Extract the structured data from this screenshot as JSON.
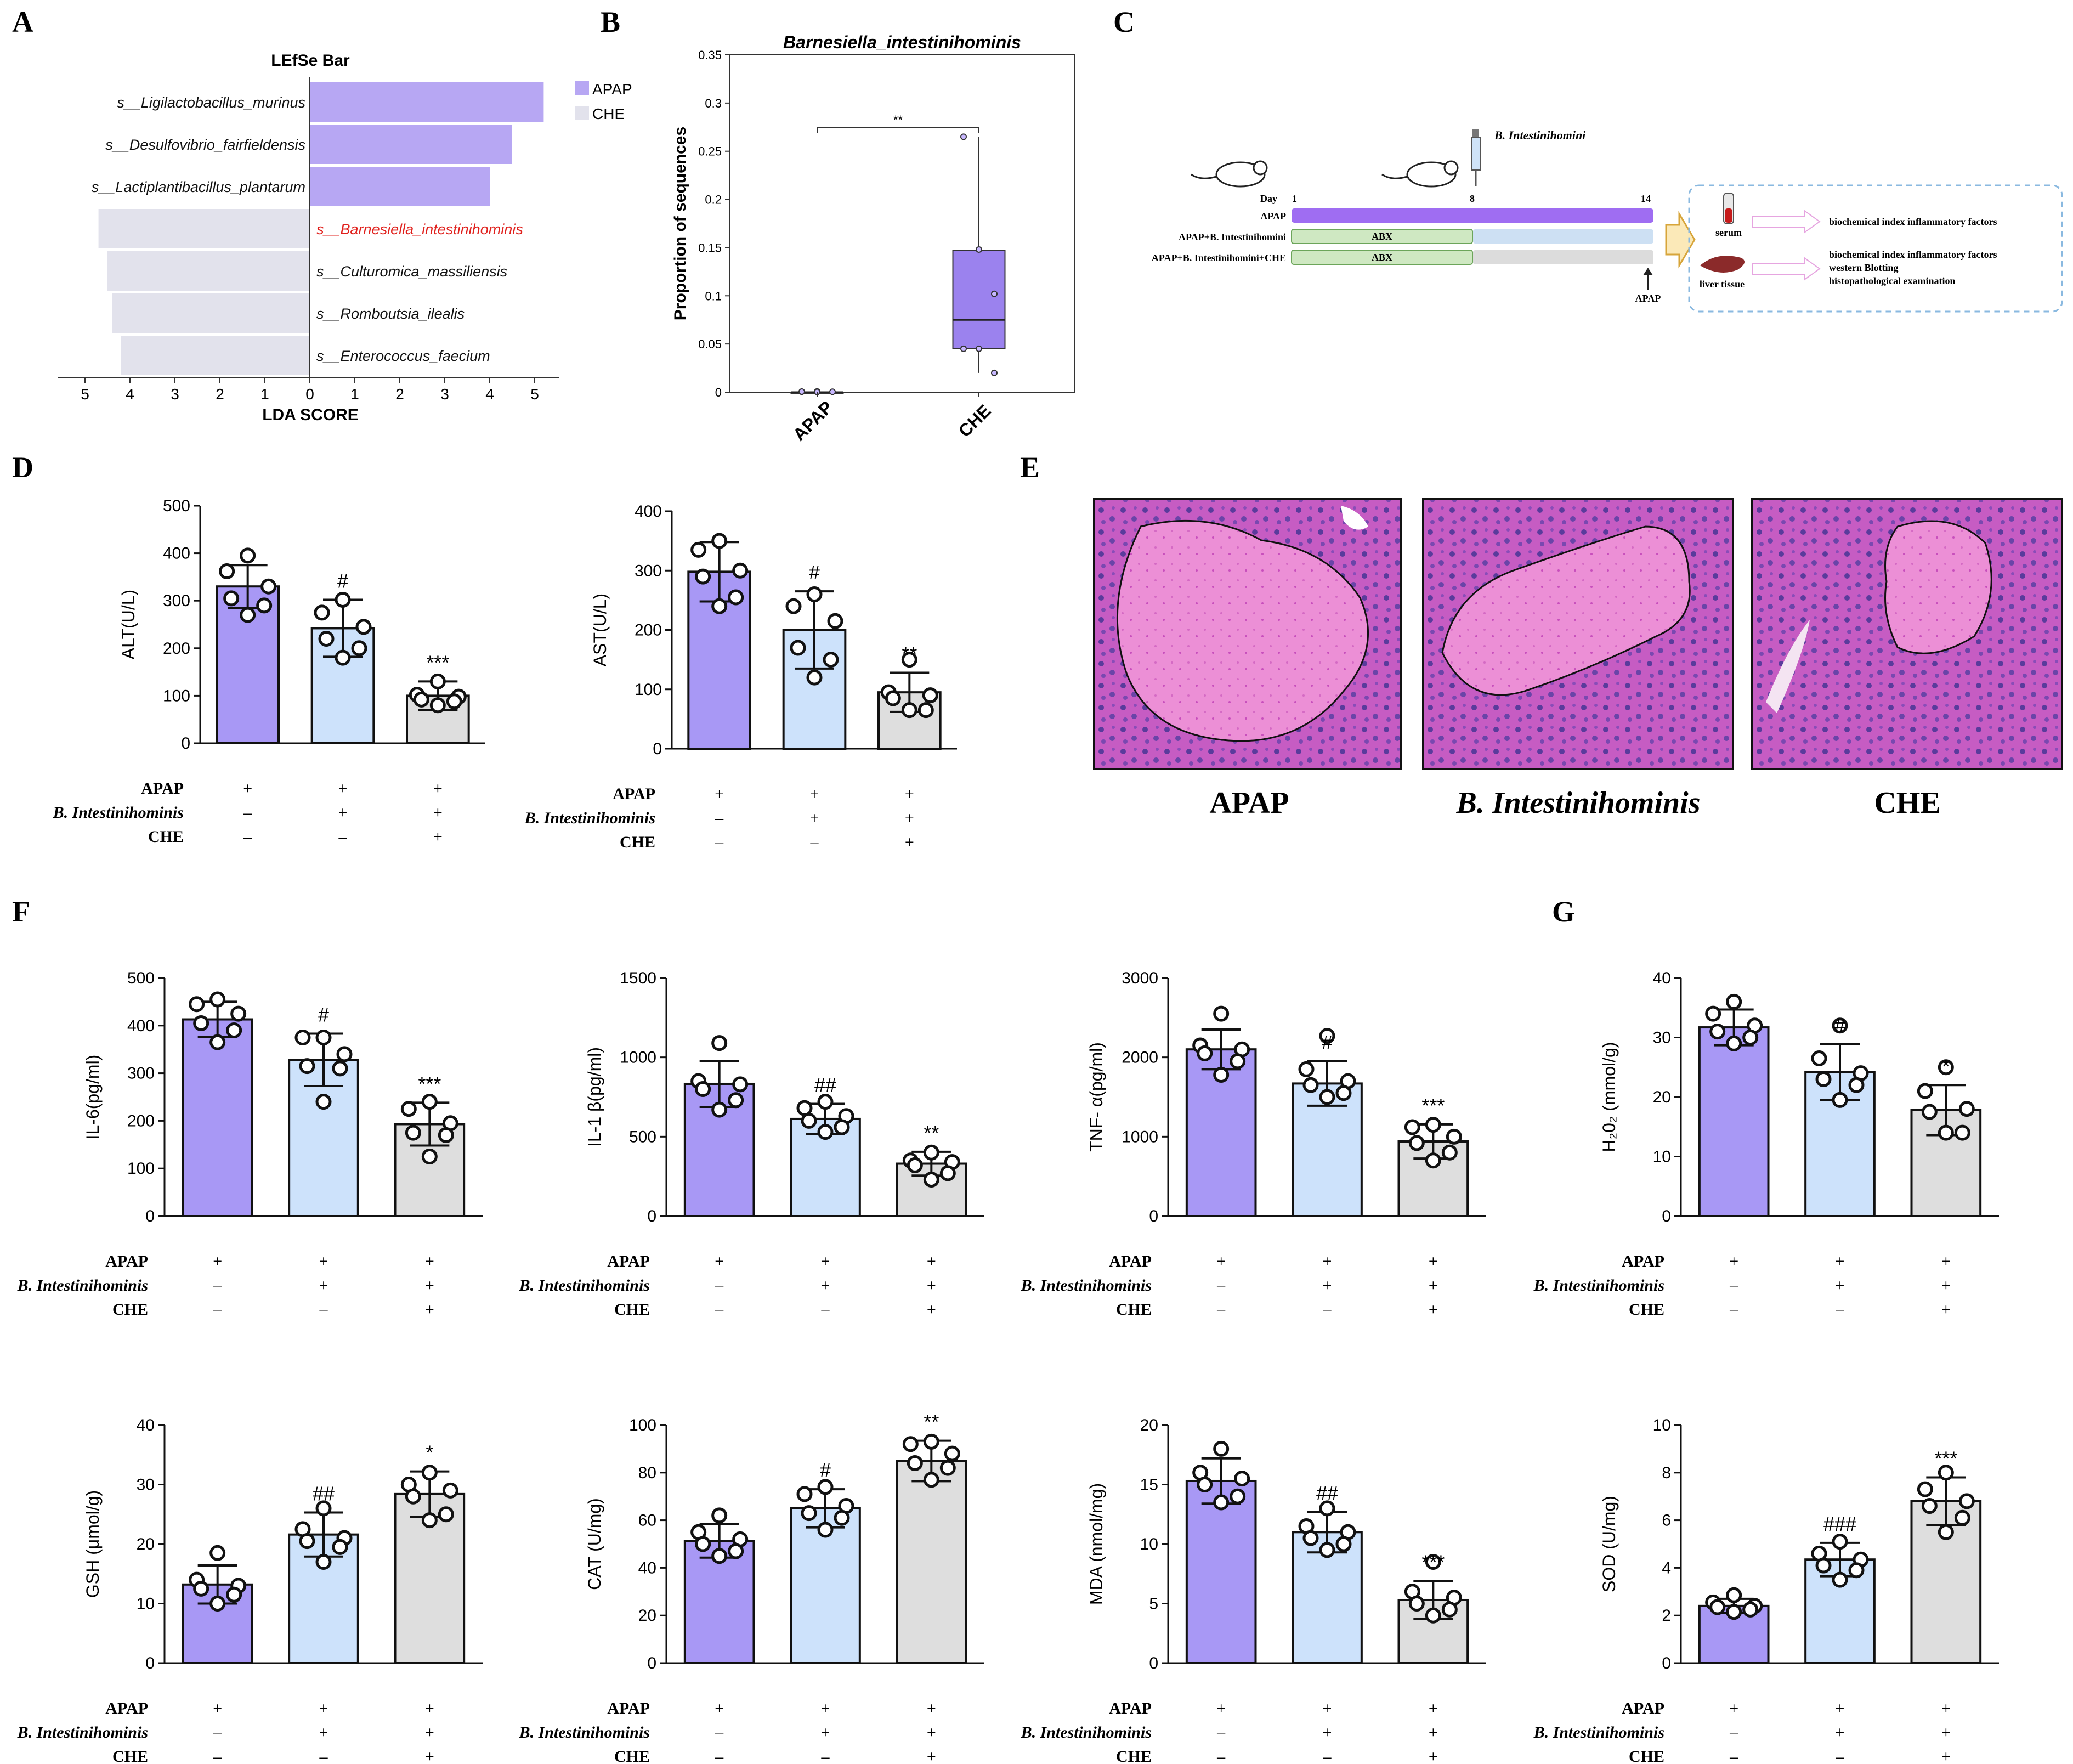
{
  "colors": {
    "apap": "#a898f5",
    "bint": "#cde2fb",
    "che": "#dedede",
    "lefse_apap": "#b7a7f3",
    "lefse_che": "#e2e2ec",
    "highlight": "#e0201c"
  },
  "panels": {
    "A": "A",
    "B": "B",
    "C": "C",
    "D": "D",
    "E": "E",
    "F": "F",
    "G": "G"
  },
  "conditions": {
    "labels": [
      "APAP",
      "B. Intestinihominis",
      "CHE"
    ],
    "signs": [
      [
        "+",
        "+",
        "+"
      ],
      [
        "–",
        "+",
        "+"
      ],
      [
        "–",
        "–",
        "+"
      ]
    ]
  },
  "lefse": {
    "title": "LEfSe Bar",
    "xlabel": "LDA SCORE",
    "legend": [
      "APAP",
      "CHE"
    ],
    "ticks": [
      "5",
      "4",
      "3",
      "2",
      "1",
      "0",
      "1",
      "2",
      "3",
      "4",
      "5"
    ]
  },
  "timeline": {
    "day_label": "Day",
    "days": [
      "1",
      "8",
      "14"
    ],
    "inject_label": "B. Intestinihomini",
    "rows": [
      "APAP",
      "APAP+B. Intestinihomini",
      "APAP+B. Intestinihomini+CHE"
    ],
    "abx": "ABX",
    "apap_arrow": "APAP",
    "samples": [
      "serum",
      "liver tissue"
    ],
    "serum_text": [
      "biochemical index inflammatory factors"
    ],
    "liver_text": [
      "biochemical index inflammatory factors",
      "western Blotting",
      "histopathological examination"
    ]
  },
  "histology": {
    "captions": [
      "APAP",
      "B. Intestinihominis",
      "CHE"
    ]
  },
  "chart_data": [
    {
      "id": "lefse",
      "type": "bar",
      "title": "LEfSe Bar",
      "xlabel": "LDA SCORE",
      "categories": [
        "s__Ligilactobacillus_murinus",
        "s__Desulfovibrio_fairfieldensis",
        "s__Lactiplantibacillus_plantarum",
        "s__Barnesiella_intestinihominis",
        "s__Culturomica_massiliensis",
        "s__Romboutsia_ilealis",
        "s__Enterococcus_faecium"
      ],
      "values": [
        5.2,
        4.5,
        4.0,
        4.7,
        4.5,
        4.4,
        4.2
      ],
      "groups": [
        "APAP",
        "APAP",
        "APAP",
        "CHE",
        "CHE",
        "CHE",
        "CHE"
      ],
      "xlim": [
        -5,
        5
      ]
    },
    {
      "id": "boxplot",
      "type": "box",
      "title": "Barnesiella_intestinihominis",
      "ylabel": "Proportion of sequences",
      "categories": [
        "APAP",
        "CHE"
      ],
      "yticks": [
        "0",
        "0.05",
        "0.1",
        "0.15",
        "0.2",
        "0.25",
        "0.3",
        "0.35"
      ],
      "ylim": [
        0,
        0.35
      ],
      "boxes": [
        {
          "min": 0,
          "q1": 0,
          "median": 0,
          "q3": 0,
          "max": 0.001
        },
        {
          "min": 0.02,
          "q1": 0.045,
          "median": 0.075,
          "q3": 0.147,
          "max": 0.265
        }
      ],
      "points": [
        [
          0.0005,
          0.0007,
          0.0004,
          0.0006,
          0.0003
        ],
        [
          0.265,
          0.148,
          0.102,
          0.045,
          0.045,
          0.02
        ]
      ],
      "significance": "**"
    },
    {
      "id": "alt",
      "type": "bar",
      "ylabel": "ALT(U/L)",
      "ylim": [
        0,
        500
      ],
      "yticks": [
        "0",
        "100",
        "200",
        "300",
        "400",
        "500"
      ],
      "categories": [
        "APAP",
        "B. Intestinihominis",
        "CHE"
      ],
      "values": [
        330,
        242,
        100
      ],
      "sd": [
        45,
        60,
        30
      ],
      "points": [
        [
          395,
          362,
          330,
          305,
          290,
          270
        ],
        [
          302,
          275,
          245,
          220,
          200,
          180
        ],
        [
          130,
          102,
          98,
          92,
          88,
          80
        ]
      ],
      "sig": [
        "",
        "#",
        "***"
      ]
    },
    {
      "id": "ast",
      "type": "bar",
      "ylabel": "AST(U/L)",
      "ylim": [
        0,
        400
      ],
      "yticks": [
        "0",
        "100",
        "200",
        "300",
        "400"
      ],
      "categories": [
        "APAP",
        "B. Intestinihominis",
        "CHE"
      ],
      "values": [
        298,
        200,
        95
      ],
      "sd": [
        50,
        65,
        33
      ],
      "points": [
        [
          350,
          335,
          300,
          290,
          255,
          240
        ],
        [
          260,
          240,
          215,
          170,
          150,
          120
        ],
        [
          150,
          95,
          90,
          85,
          65,
          65
        ]
      ],
      "sig": [
        "",
        "#",
        "**"
      ]
    },
    {
      "id": "il6",
      "type": "bar",
      "ylabel": "IL-6(pg/ml)",
      "ylim": [
        0,
        500
      ],
      "yticks": [
        "0",
        "100",
        "200",
        "300",
        "400",
        "500"
      ],
      "categories": [
        "APAP",
        "B. Intestinihominis",
        "CHE"
      ],
      "values": [
        413,
        328,
        193
      ],
      "sd": [
        37,
        55,
        45
      ],
      "points": [
        [
          455,
          445,
          425,
          405,
          390,
          365
        ],
        [
          375,
          375,
          340,
          315,
          310,
          240
        ],
        [
          240,
          225,
          195,
          175,
          170,
          125
        ]
      ],
      "sig": [
        "",
        "#",
        "***"
      ]
    },
    {
      "id": "il1b",
      "type": "bar",
      "ylabel": "IL-1 β(pg/ml)",
      "ylim": [
        0,
        1500
      ],
      "yticks": [
        "0",
        "500",
        "1000",
        "1500"
      ],
      "categories": [
        "APAP",
        "B. Intestinihominis",
        "CHE"
      ],
      "values": [
        833,
        612,
        330
      ],
      "sd": [
        145,
        95,
        75
      ],
      "points": [
        [
          1090,
          850,
          830,
          800,
          730,
          670
        ],
        [
          720,
          680,
          630,
          600,
          560,
          530
        ],
        [
          400,
          350,
          340,
          320,
          270,
          230
        ]
      ],
      "sig": [
        "",
        "##",
        "**"
      ]
    },
    {
      "id": "tnfa",
      "type": "bar",
      "ylabel": "TNF- α(pg/ml)",
      "ylim": [
        0,
        3000
      ],
      "yticks": [
        "0",
        "1000",
        "2000",
        "3000"
      ],
      "categories": [
        "APAP",
        "B. Intestinihominis",
        "CHE"
      ],
      "values": [
        2100,
        1670,
        940
      ],
      "sd": [
        250,
        280,
        215
      ],
      "points": [
        [
          2550,
          2150,
          2100,
          2050,
          1950,
          1780
        ],
        [
          2270,
          1850,
          1700,
          1650,
          1550,
          1500
        ],
        [
          1150,
          1120,
          1000,
          920,
          800,
          700
        ]
      ],
      "sig": [
        "",
        "#",
        "***"
      ]
    },
    {
      "id": "h2o2",
      "type": "bar",
      "ylabel": "H₂0₂ (mmol/g)",
      "ylim": [
        0,
        40
      ],
      "yticks": [
        "0",
        "10",
        "20",
        "30",
        "40"
      ],
      "categories": [
        "APAP",
        "B. Intestinihominis",
        "CHE"
      ],
      "values": [
        31.7,
        24.2,
        17.8
      ],
      "sd": [
        3,
        4.7,
        4.2
      ],
      "points": [
        [
          36,
          34,
          32,
          31,
          30,
          29
        ],
        [
          32,
          26.5,
          24,
          23,
          22,
          19.5
        ],
        [
          25,
          21,
          18,
          17.5,
          14,
          14
        ]
      ],
      "sig": [
        "",
        "#",
        "*"
      ]
    },
    {
      "id": "gsh",
      "type": "bar",
      "ylabel": "GSH (μmol/g)",
      "ylim": [
        0,
        40
      ],
      "yticks": [
        "0",
        "10",
        "20",
        "30",
        "40"
      ],
      "categories": [
        "APAP",
        "B. Intestinihominis",
        "CHE"
      ],
      "values": [
        13.2,
        21.6,
        28.4
      ],
      "sd": [
        3.2,
        3.7,
        3.8
      ],
      "points": [
        [
          18.5,
          14,
          13,
          12.5,
          11.5,
          10
        ],
        [
          26,
          22.5,
          21,
          20.5,
          19.5,
          17
        ],
        [
          32,
          30,
          29,
          28,
          25,
          24
        ]
      ],
      "sig": [
        "",
        "##",
        "*"
      ]
    },
    {
      "id": "cat",
      "type": "bar",
      "ylabel": "CAT (U/mg)",
      "ylim": [
        0,
        100
      ],
      "yticks": [
        "0",
        "20",
        "40",
        "60",
        "80",
        "100"
      ],
      "categories": [
        "APAP",
        "B. Intestinihominis",
        "CHE"
      ],
      "values": [
        51.3,
        65,
        84.9
      ],
      "sd": [
        7,
        8,
        8.5
      ],
      "points": [
        [
          62,
          55,
          52,
          50,
          47,
          45
        ],
        [
          74,
          71,
          66,
          63,
          61,
          56
        ],
        [
          93,
          92,
          88,
          84,
          82,
          77
        ]
      ],
      "sig": [
        "",
        "#",
        "**"
      ]
    },
    {
      "id": "mda",
      "type": "bar",
      "ylabel": "MDA (nmol/mg)",
      "ylim": [
        0,
        20
      ],
      "yticks": [
        "0",
        "5",
        "10",
        "15",
        "20"
      ],
      "categories": [
        "APAP",
        "B. Intestinihominis",
        "CHE"
      ],
      "values": [
        15.3,
        11,
        5.3
      ],
      "sd": [
        1.9,
        1.7,
        1.6
      ],
      "points": [
        [
          18,
          16,
          15.5,
          15,
          14,
          13.5
        ],
        [
          13,
          11.5,
          11,
          10.5,
          10,
          9.5
        ],
        [
          8.5,
          6,
          5.5,
          5,
          4.5,
          4
        ]
      ],
      "sig": [
        "",
        "##",
        "***"
      ]
    },
    {
      "id": "sod",
      "type": "bar",
      "ylabel": "SOD (U/mg)",
      "ylim": [
        0,
        10
      ],
      "yticks": [
        "0",
        "2",
        "4",
        "6",
        "8",
        "10"
      ],
      "categories": [
        "APAP",
        "B. Intestinihominis",
        "CHE"
      ],
      "values": [
        2.4,
        4.35,
        6.8
      ],
      "sd": [
        0.3,
        0.7,
        1.0
      ],
      "points": [
        [
          2.85,
          2.55,
          2.4,
          2.35,
          2.25,
          2.15
        ],
        [
          5.1,
          4.6,
          4.35,
          4.1,
          3.9,
          3.5
        ],
        [
          8.0,
          7.3,
          6.8,
          6.6,
          6.1,
          5.5
        ]
      ],
      "sig": [
        "",
        "###",
        "***"
      ]
    }
  ]
}
